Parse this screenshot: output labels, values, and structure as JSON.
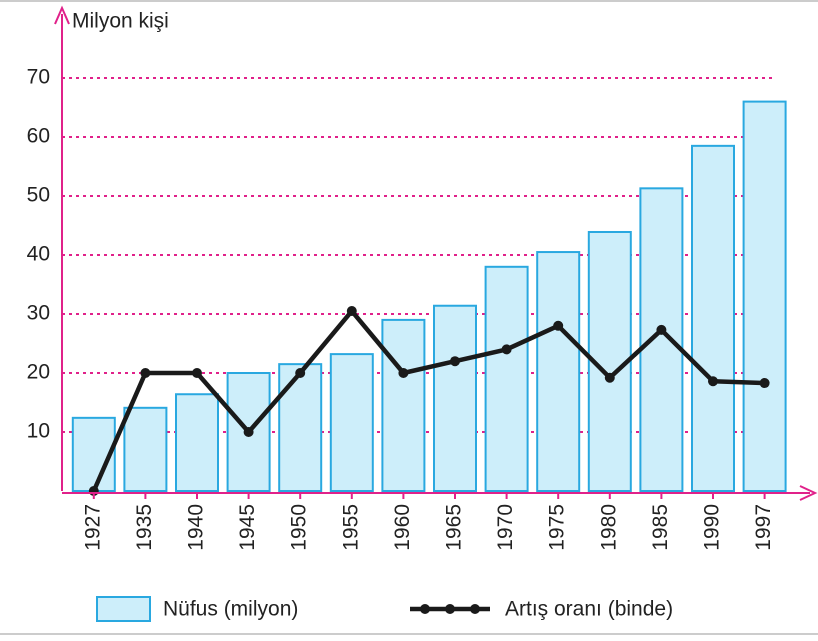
{
  "chart_data": {
    "type": "bar_line",
    "y_axis_label": "Milyon kişi",
    "categories": [
      "1927",
      "1935",
      "1940",
      "1945",
      "1950",
      "1955",
      "1960",
      "1965",
      "1970",
      "1975",
      "1980",
      "1985",
      "1990",
      "1997"
    ],
    "series": [
      {
        "name": "Nüfus (milyon)",
        "type": "bar",
        "color": "#cdeefa",
        "edge_color": "#29a8e0",
        "values": [
          12.4,
          14.1,
          16.4,
          20,
          21.5,
          23.2,
          29,
          31.4,
          38,
          40.5,
          43.9,
          51.3,
          58.5,
          66
        ]
      },
      {
        "name": "Artış oranı (binde)",
        "type": "line",
        "color": "#1a1a1a",
        "values": [
          0,
          20,
          20,
          10,
          20,
          30.5,
          20,
          22,
          24,
          28,
          19.2,
          27.3,
          18.6,
          18.3
        ]
      }
    ],
    "ylim": [
      0,
      70
    ],
    "yticks": [
      10,
      20,
      30,
      40,
      50,
      60,
      70
    ],
    "grid": true,
    "grid_color": "#e0218a",
    "axis_color": "#e0218a"
  }
}
